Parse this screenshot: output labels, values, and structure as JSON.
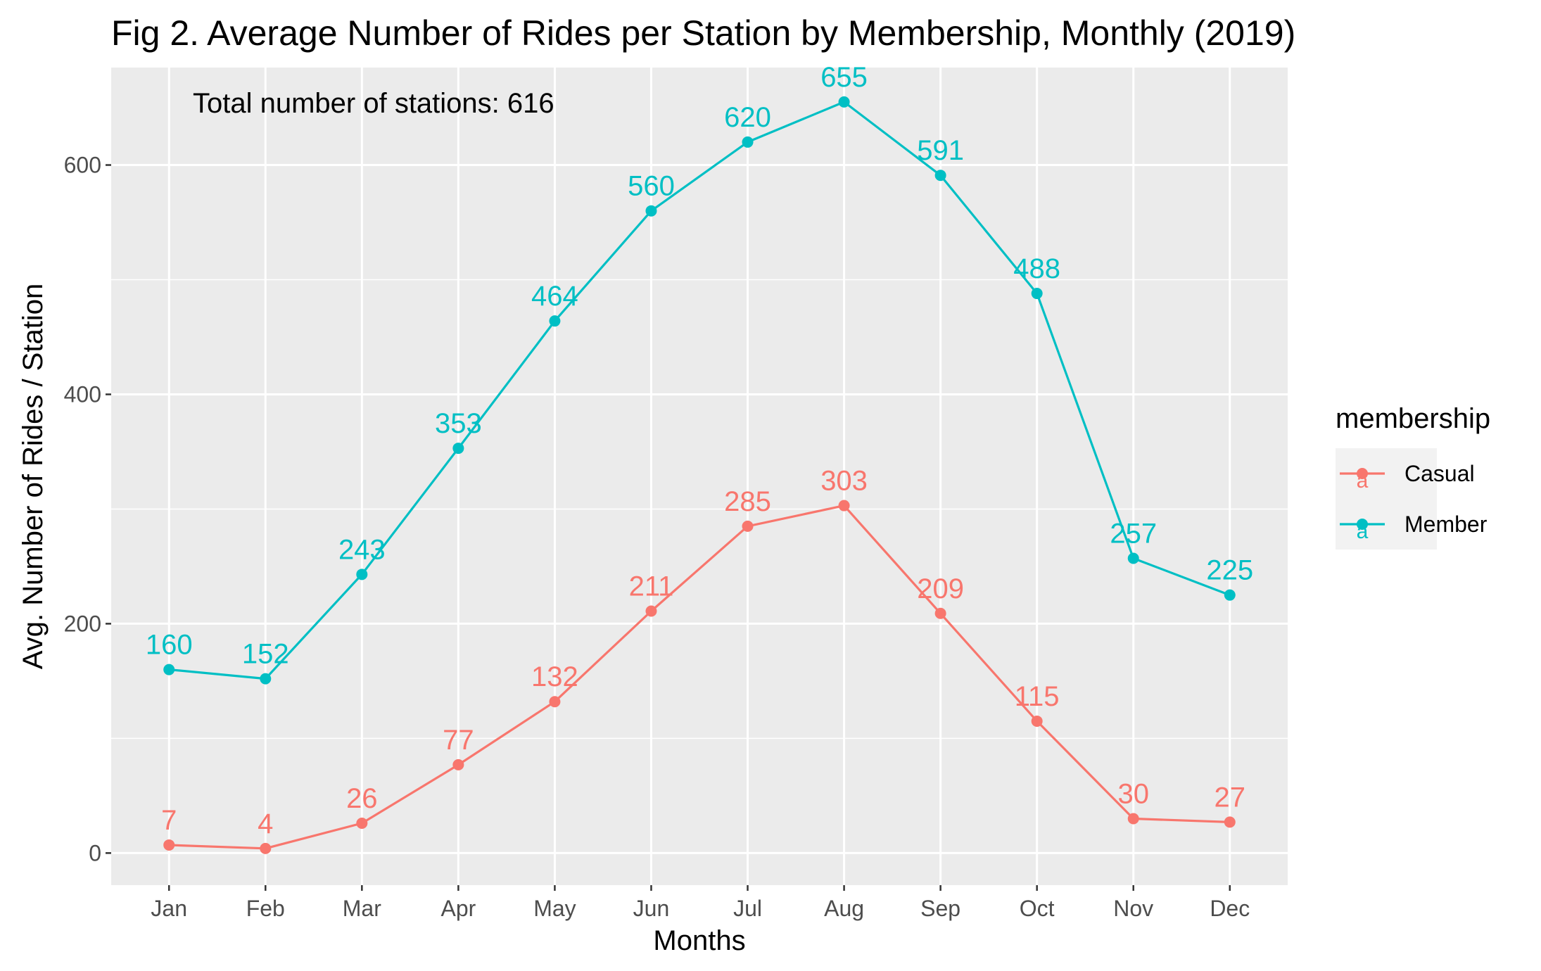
{
  "chart_data": {
    "type": "line",
    "title": "Fig 2. Average Number of Rides per Station by Membership, Monthly (2019)",
    "xlabel": "Months",
    "ylabel": "Avg. Number of Rides / Station",
    "annotation": "Total number of stations: 616",
    "categories": [
      "Jan",
      "Feb",
      "Mar",
      "Apr",
      "May",
      "Jun",
      "Jul",
      "Aug",
      "Sep",
      "Oct",
      "Nov",
      "Dec"
    ],
    "series": [
      {
        "name": "Casual",
        "color": "#F8766D",
        "values": [
          7,
          4,
          26,
          77,
          132,
          211,
          285,
          303,
          209,
          115,
          30,
          27
        ]
      },
      {
        "name": "Member",
        "color": "#00BFC4",
        "values": [
          160,
          152,
          243,
          353,
          464,
          560,
          620,
          655,
          591,
          488,
          257,
          225
        ]
      }
    ],
    "ylim": [
      -28,
      685
    ],
    "yticks": [
      0,
      200,
      400,
      600
    ],
    "grid": true,
    "legend": {
      "title": "membership",
      "position": "right",
      "key_letter": "a"
    },
    "panel_background": "#EBEBEB",
    "grid_color": "#FFFFFF"
  }
}
